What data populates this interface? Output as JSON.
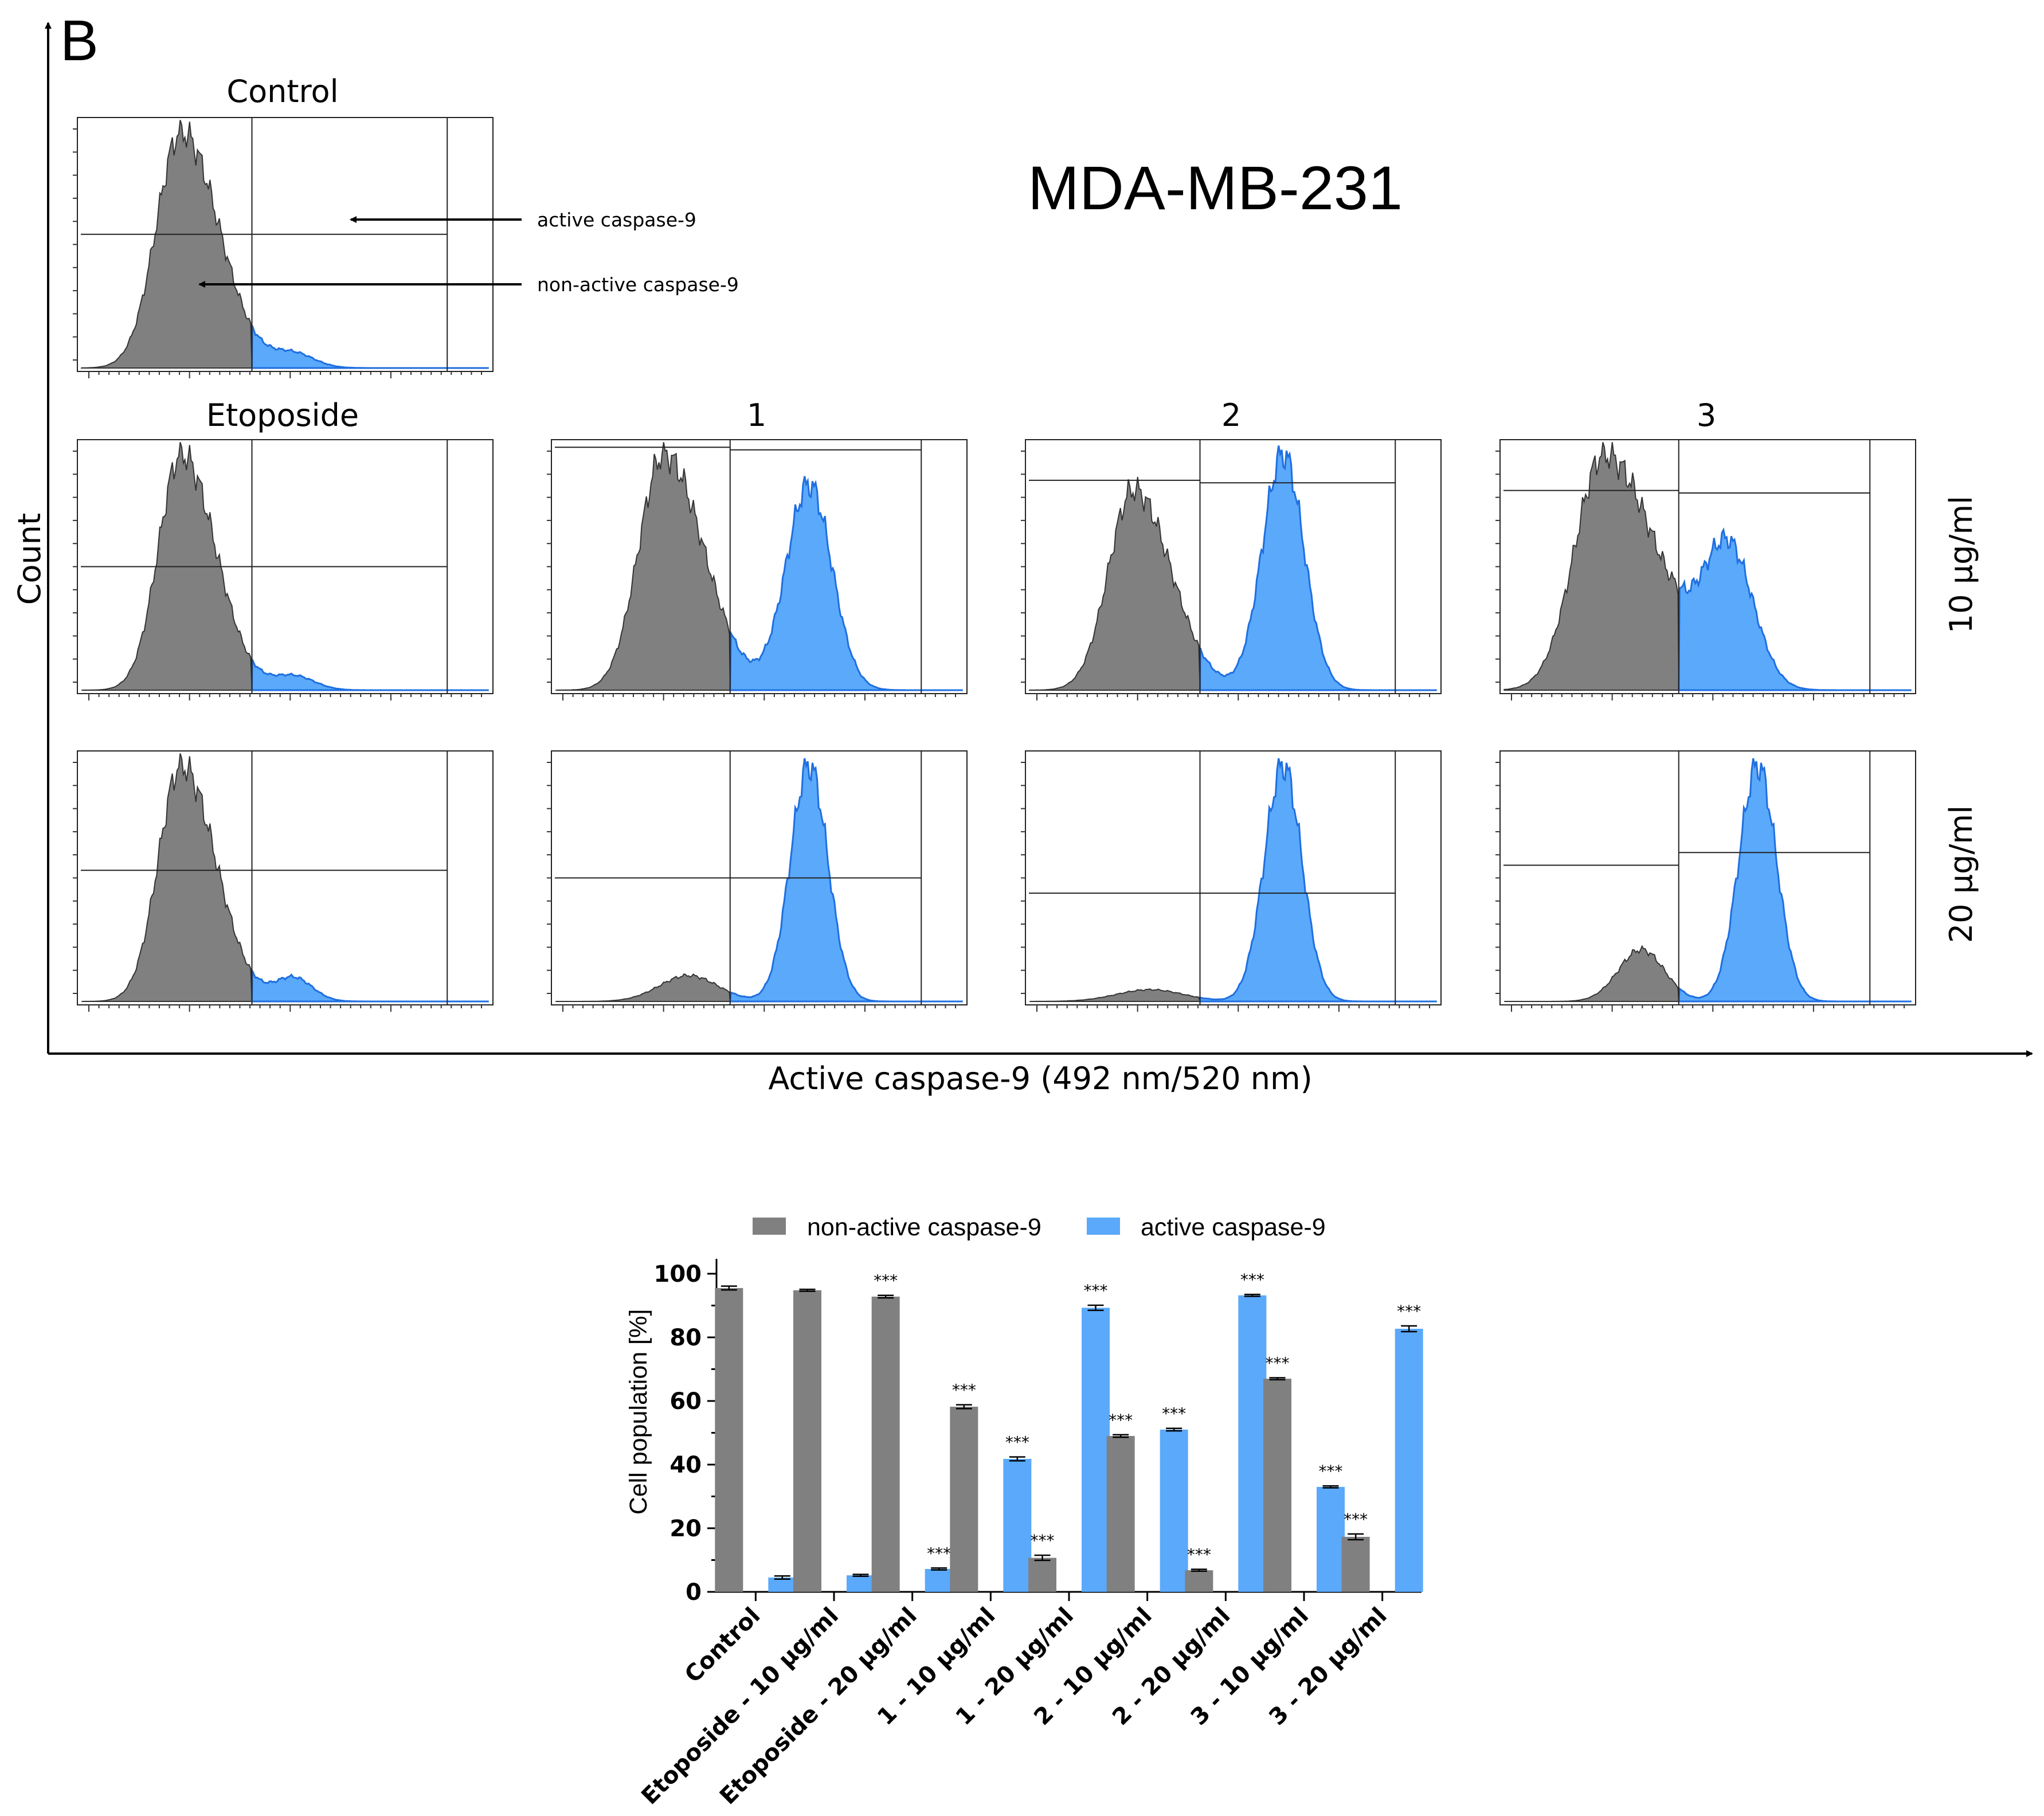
{
  "panel_label": "B",
  "cell_line": "MDA-MB-231",
  "axes": {
    "y_label": "Count",
    "x_label": "Active caspase-9 (492 nm/520 nm)"
  },
  "histograms": {
    "column_titles": [
      "Etoposide",
      "1",
      "2",
      "3"
    ],
    "control_title": "Control",
    "row_labels": [
      "10 μg/ml",
      "20 μg/ml"
    ],
    "annotations": {
      "active": "active caspase-9",
      "non_active": "non-active caspase-9"
    },
    "colors": {
      "non_active": "#808080",
      "active": "#5aa9fb",
      "active_edge": "#1f6fe0"
    },
    "panels": [
      {
        "id": "control",
        "active_fraction": 0.045
      },
      {
        "id": "etoposide-10",
        "active_fraction": 0.052
      },
      {
        "id": "etoposide-20",
        "active_fraction": 0.072
      },
      {
        "id": "1-10",
        "active_fraction": 0.418
      },
      {
        "id": "1-20",
        "active_fraction": 0.893
      },
      {
        "id": "2-10",
        "active_fraction": 0.51
      },
      {
        "id": "2-20",
        "active_fraction": 0.932
      },
      {
        "id": "3-10",
        "active_fraction": 0.33
      },
      {
        "id": "3-20",
        "active_fraction": 0.827
      }
    ]
  },
  "chart_data": {
    "type": "bar",
    "title": "",
    "xlabel": "",
    "ylabel": "Cell population [%]",
    "ylim": [
      0,
      100
    ],
    "yticks": [
      0,
      20,
      40,
      60,
      80,
      100
    ],
    "categories": [
      "Control",
      "Etoposide - 10 μg/ml",
      "Etoposide - 20 μg/ml",
      "1 - 10 μg/ml",
      "1 - 20 μg/ml",
      "2 - 10 μg/ml",
      "2 - 20 μg/ml",
      "3 - 10 μg/ml",
      "3 - 20 μg/ml"
    ],
    "series": [
      {
        "name": "non-active caspase-9",
        "color": "#808080",
        "values": [
          95.5,
          94.8,
          92.8,
          58.2,
          10.7,
          49.0,
          6.8,
          67.0,
          17.3
        ],
        "errors": [
          0.6,
          0.3,
          0.4,
          0.6,
          0.8,
          0.4,
          0.3,
          0.3,
          0.9
        ],
        "significance": [
          "",
          "",
          "***",
          "***",
          "***",
          "***",
          "***",
          "***",
          "***"
        ]
      },
      {
        "name": "active caspase-9",
        "color": "#5aa9fb",
        "values": [
          4.5,
          5.2,
          7.2,
          41.8,
          89.3,
          51.0,
          93.2,
          33.0,
          82.7
        ],
        "errors": [
          0.5,
          0.3,
          0.3,
          0.6,
          0.8,
          0.4,
          0.3,
          0.3,
          0.9
        ],
        "significance": [
          "",
          "",
          "***",
          "***",
          "***",
          "***",
          "***",
          "***",
          "***"
        ]
      }
    ],
    "legend_position": "top"
  }
}
